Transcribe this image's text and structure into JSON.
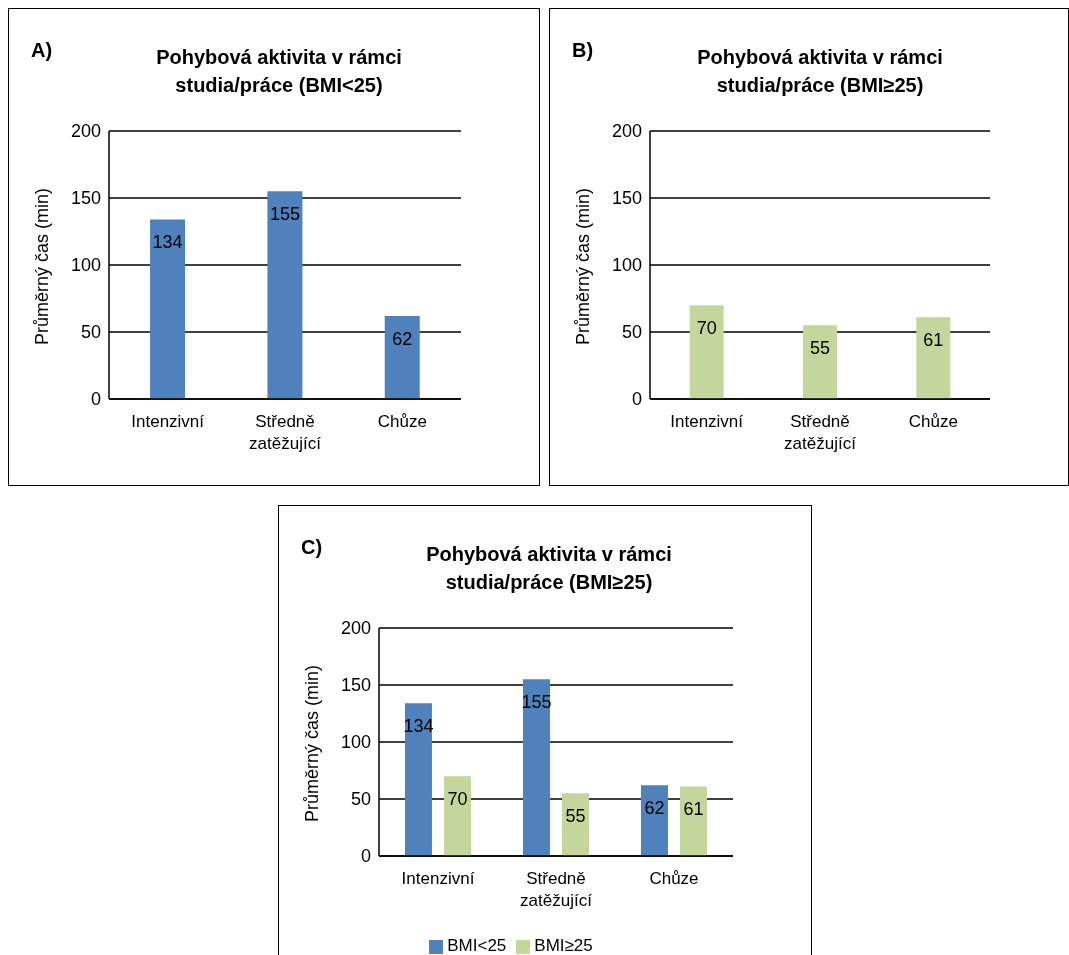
{
  "chart_data": [
    {
      "type": "bar",
      "title": "Pohybová aktivita v rámci studia/práce (BMI<25)",
      "ylabel": "Průměrný čas (min)",
      "annotations": [
        "A)"
      ],
      "categories": [
        "Intenzivní",
        "Středně zatěžující",
        "Chůze"
      ],
      "values": [
        134,
        155,
        62
      ],
      "color": "#4f81bd",
      "ylim": [
        0,
        200
      ],
      "yticks": [
        0,
        50,
        100,
        150,
        200
      ],
      "grid": "y",
      "data_labels": true
    },
    {
      "type": "bar",
      "title": "Pohybová aktivita v rámci studia/práce (BMI≥25)",
      "ylabel": "Průměrný čas (min)",
      "annotations": [
        "B)"
      ],
      "categories": [
        "Intenzivní",
        "Středně zatěžující",
        "Chůze"
      ],
      "values": [
        70,
        55,
        61
      ],
      "color": "#c3d69b",
      "ylim": [
        0,
        200
      ],
      "yticks": [
        0,
        50,
        100,
        150,
        200
      ],
      "grid": "y",
      "data_labels": true
    },
    {
      "type": "bar",
      "title": "Pohybová aktivita v rámci studia/práce (BMI≥25)",
      "ylabel": "Průměrný čas (min)",
      "annotations": [
        "C)"
      ],
      "categories": [
        "Intenzivní",
        "Středně zatěžující",
        "Chůze"
      ],
      "series": [
        {
          "name": "BMI<25",
          "color": "#4f81bd",
          "values": [
            134,
            155,
            62
          ]
        },
        {
          "name": "BMI≥25",
          "color": "#c3d69b",
          "values": [
            70,
            55,
            61
          ]
        }
      ],
      "ylim": [
        0,
        200
      ],
      "yticks": [
        0,
        50,
        100,
        150,
        200
      ],
      "grid": "y",
      "data_labels": true,
      "legend": "bottom"
    }
  ]
}
